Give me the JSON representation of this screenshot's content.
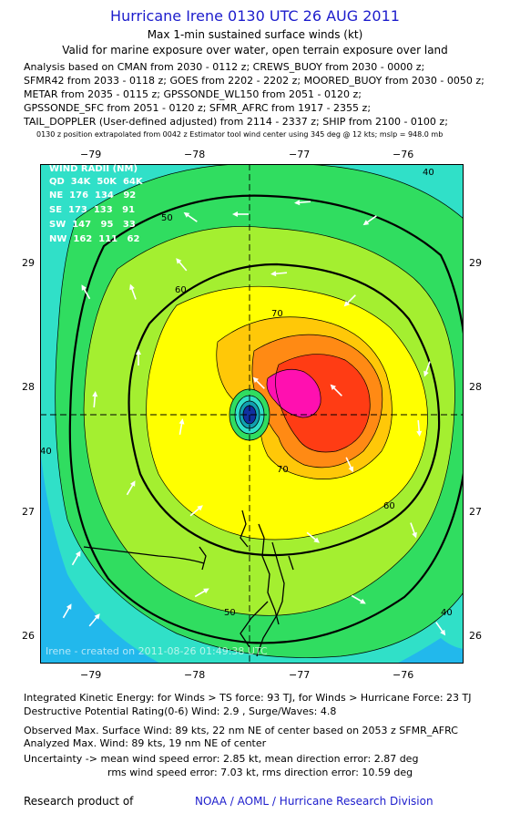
{
  "header": {
    "title": "Hurricane Irene 0130 UTC 26 AUG 2011",
    "line1": "Max 1-min sustained surface winds (kt)",
    "line2": "Valid for marine exposure over water, open terrain exposure over land"
  },
  "analysis_lines": [
    "Analysis based on CMAN from 2030 - 0112 z; CREWS_BUOY from 2030 - 0000 z;",
    "SFMR42 from 2033 - 0118 z; GOES from 2202 - 2202 z; MOORED_BUOY from 2030 - 0050 z;",
    "METAR from 2035 - 0115 z; GPSSONDE_WL150 from 2051 - 0120 z;",
    "GPSSONDE_SFC from 2051 - 0120 z; SFMR_AFRC from 1917 - 2355 z;",
    "TAIL_DOPPLER (User-defined adjusted) from 2114 - 2337 z; SHIP from 2100 - 0100 z;"
  ],
  "position_note": "0130 z position extrapolated from 0042 z Estimator tool wind center using 345 deg @ 12 kts; mslp = 948.0 mb",
  "map": {
    "lon_ticks": [
      "−79",
      "−78",
      "−77",
      "−76"
    ],
    "lat_ticks": [
      "29",
      "28",
      "27",
      "26"
    ],
    "contour_labels": [
      "40",
      "50",
      "60",
      "70",
      "40",
      "50",
      "60",
      "70",
      "40"
    ],
    "wind_radii": {
      "heading": "WIND RADII (NM)",
      "rows": [
        "QD  34K  50K  64K",
        "NE  176  134   92",
        "SE  173  133   91",
        "SW  147   95   33",
        "NW  162  111   62"
      ]
    },
    "watermark": "Irene - created on 2011-08-26 01:49:38 UTC",
    "colors": {
      "cyan": "#22b8ec",
      "aqua": "#30e0c8",
      "green": "#30dd60",
      "lime": "#a4ef30",
      "yellow": "#ffff00",
      "gold": "#ffc808",
      "orange": "#ff8a14",
      "red": "#ff3c14",
      "magenta": "#ff10b0",
      "eye_blue": "#1030a0",
      "eye_teal": "#10a0b0"
    }
  },
  "stats": {
    "ike": "Integrated Kinetic Energy:  for Winds > TS force: 93 TJ,  for Winds > Hurricane Force: 23 TJ",
    "dpr": "Destructive Potential Rating(0-6)   Wind: 2.9 , Surge/Waves: 4.8",
    "observed": "Observed Max. Surface Wind: 89 kts, 22 nm NE of center based on 2053 z SFMR_AFRC",
    "analyzed": "Analyzed Max. Wind: 89 kts, 19 nm NE of center",
    "uncert1": "Uncertainty -> mean wind speed error: 2.85 kt,   mean direction error: 2.87 deg",
    "uncert2": "rms wind speed error: 7.03 kt,   rms direction error: 10.59 deg"
  },
  "footer": {
    "credit": "Research product of",
    "org": "NOAA / AOML / Hurricane Research Division"
  }
}
